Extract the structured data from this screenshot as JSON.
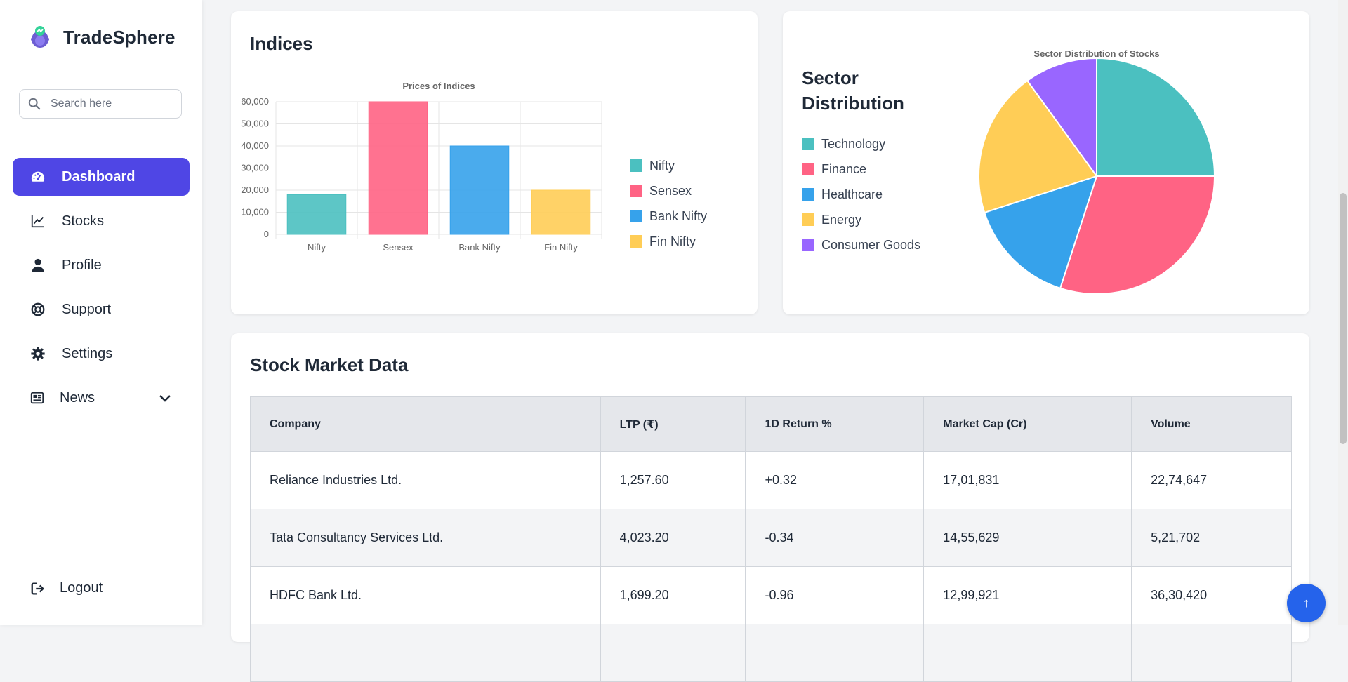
{
  "app": {
    "name": "TradeSphere"
  },
  "search": {
    "placeholder": "Search here"
  },
  "nav": {
    "items": [
      {
        "label": "Dashboard",
        "icon": "gauge-icon",
        "active": true
      },
      {
        "label": "Stocks",
        "icon": "chart-line-icon"
      },
      {
        "label": "Profile",
        "icon": "user-icon"
      },
      {
        "label": "Support",
        "icon": "lifebuoy-icon"
      },
      {
        "label": "Settings",
        "icon": "gear-icon"
      },
      {
        "label": "News",
        "icon": "newspaper-icon",
        "expandable": true
      }
    ],
    "logout_label": "Logout"
  },
  "indices": {
    "title": "Indices",
    "legend": [
      {
        "label": "Nifty",
        "color": "#4bc0c0"
      },
      {
        "label": "Sensex",
        "color": "#ff6384"
      },
      {
        "label": "Bank Nifty",
        "color": "#36a2eb"
      },
      {
        "label": "Fin Nifty",
        "color": "#ffcd56"
      }
    ]
  },
  "sector": {
    "title": "Sector Distribution",
    "legend": [
      {
        "label": "Technology",
        "color": "#4bc0c0"
      },
      {
        "label": "Finance",
        "color": "#ff6384"
      },
      {
        "label": "Healthcare",
        "color": "#36a2eb"
      },
      {
        "label": "Energy",
        "color": "#ffcd56"
      },
      {
        "label": "Consumer Goods",
        "color": "#9966ff"
      }
    ]
  },
  "chart_data": [
    {
      "type": "bar",
      "title": "Prices of Indices",
      "categories": [
        "Nifty",
        "Sensex",
        "Bank Nifty",
        "Fin Nifty"
      ],
      "values": [
        18000,
        60000,
        40000,
        20000
      ],
      "colors": [
        "#4bc0c0",
        "#ff6384",
        "#36a2eb",
        "#ffcd56"
      ],
      "ylim": [
        0,
        60000
      ],
      "yticks": [
        "0",
        "10,000",
        "20,000",
        "30,000",
        "40,000",
        "50,000",
        "60,000"
      ],
      "grid": true,
      "legend": "right"
    },
    {
      "type": "pie",
      "title": "Sector Distribution of Stocks",
      "labels": [
        "Technology",
        "Finance",
        "Healthcare",
        "Energy",
        "Consumer Goods"
      ],
      "values": [
        25,
        30,
        15,
        20,
        10
      ],
      "colors": [
        "#4bc0c0",
        "#ff6384",
        "#36a2eb",
        "#ffcd56",
        "#9966ff"
      ],
      "legend": "left"
    }
  ],
  "table": {
    "title": "Stock Market Data",
    "columns": [
      "Company",
      "LTP (₹)",
      "1D Return %",
      "Market Cap (Cr)",
      "Volume"
    ],
    "rows": [
      {
        "company": "Reliance Industries Ltd.",
        "ltp": "1,257.60",
        "ret": "+0.32",
        "dir": "pos",
        "mcap": "17,01,831",
        "volume": "22,74,647"
      },
      {
        "company": "Tata Consultancy Services Ltd.",
        "ltp": "4,023.20",
        "ret": "-0.34",
        "dir": "neg",
        "mcap": "14,55,629",
        "volume": "5,21,702"
      },
      {
        "company": "HDFC Bank Ltd.",
        "ltp": "1,699.20",
        "ret": "-0.96",
        "dir": "neg",
        "mcap": "12,99,921",
        "volume": "36,30,420"
      },
      {
        "company": "",
        "ltp": "",
        "ret": "",
        "dir": "pos",
        "mcap": "",
        "volume": ""
      }
    ]
  },
  "fab": {
    "label": "↑"
  }
}
